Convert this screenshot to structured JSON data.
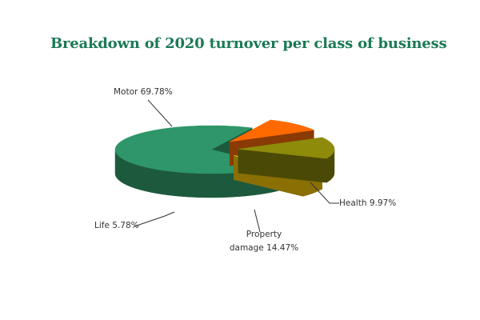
{
  "chart_data": {
    "type": "pie",
    "title": "Breakdown of 2020 turnover per class of business",
    "slices": [
      {
        "name": "Motor",
        "value": 69.78,
        "label": "Motor 69.78%",
        "color": "#2e9668",
        "dark": "#1d5a3d"
      },
      {
        "name": "Health",
        "value": 9.97,
        "label": "Health 9.97%",
        "color": "#ff6a00",
        "dark": "#8a3a05"
      },
      {
        "name": "Property damage",
        "value": 14.47,
        "label_line1": "Property",
        "label_line2": "damage 14.47%",
        "color": "#8e8b0a",
        "dark": "#4a4a06"
      },
      {
        "name": "Life",
        "value": 5.78,
        "label": "Life  5.78%",
        "color": "#ffcc00",
        "dark": "#8a6f05"
      }
    ],
    "style": "3d-exploded"
  }
}
